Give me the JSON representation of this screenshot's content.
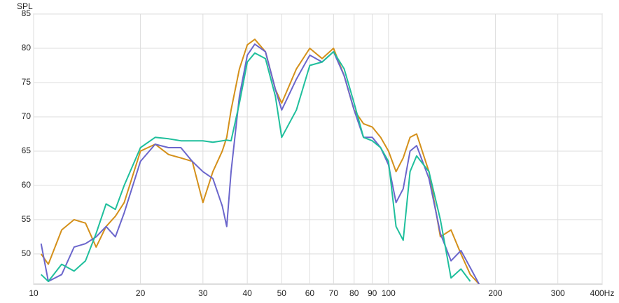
{
  "chart_data": {
    "type": "line",
    "y_label": "SPL",
    "xscale": "log",
    "grid": true,
    "x": [
      10.5,
      11,
      12,
      13,
      14,
      15,
      16,
      17,
      18,
      20,
      22,
      24,
      26,
      28,
      30,
      32,
      34,
      35,
      36,
      38,
      40,
      42,
      45,
      48,
      50,
      55,
      60,
      65,
      70,
      75,
      80,
      85,
      90,
      95,
      100,
      105,
      110,
      115,
      120,
      130,
      140,
      150,
      160,
      170,
      180
    ],
    "series": [
      {
        "name": "Orange",
        "color": "#d4901a",
        "values": [
          50,
          48.5,
          53.5,
          55,
          54.5,
          51,
          54,
          55.5,
          57.5,
          65,
          66,
          64.5,
          64,
          63.5,
          57.5,
          62,
          65,
          67,
          71,
          77,
          80.5,
          81.3,
          79.5,
          74,
          72,
          77,
          80,
          78.5,
          80,
          76,
          71,
          69,
          68.5,
          67,
          65,
          62,
          64,
          67,
          67.5,
          62,
          52.5,
          53.5,
          50,
          47,
          45.6
        ]
      },
      {
        "name": "Purple",
        "color": "#6b66cc",
        "values": [
          51.5,
          46,
          47,
          51,
          51.5,
          52.5,
          54,
          52.5,
          56,
          63.5,
          66,
          65.5,
          65.5,
          63.5,
          62,
          61,
          57,
          54,
          62,
          73,
          79,
          80.6,
          79.5,
          74,
          71,
          75.5,
          79,
          78,
          79.5,
          76,
          71,
          67,
          67,
          65.5,
          63,
          57.5,
          59.5,
          65,
          65.8,
          61,
          53,
          49,
          50.5,
          48,
          45.6
        ]
      },
      {
        "name": "Teal",
        "color": "#1fbf9c",
        "values": [
          47,
          46,
          48.5,
          47.5,
          49,
          53,
          57.3,
          56.5,
          60,
          65.5,
          67,
          66.8,
          66.5,
          66.5,
          66.5,
          66.3,
          66.5,
          66.6,
          66.5,
          72,
          78,
          79.3,
          78.5,
          73,
          67,
          71,
          77.5,
          78,
          79.5,
          77,
          72,
          67,
          66.5,
          65.5,
          63.5,
          54,
          52,
          62,
          64.3,
          62,
          55,
          46.5,
          47.8,
          46,
          null
        ]
      }
    ],
    "xlim": [
      10,
      400
    ],
    "xticks": [
      10,
      20,
      30,
      40,
      50,
      60,
      70,
      80,
      90,
      100,
      200,
      300,
      {
        "value": 400,
        "label": "400Hz"
      }
    ],
    "ylim": [
      45.6,
      85
    ],
    "yticks": [
      50,
      55,
      60,
      65,
      70,
      75,
      80,
      85
    ]
  }
}
